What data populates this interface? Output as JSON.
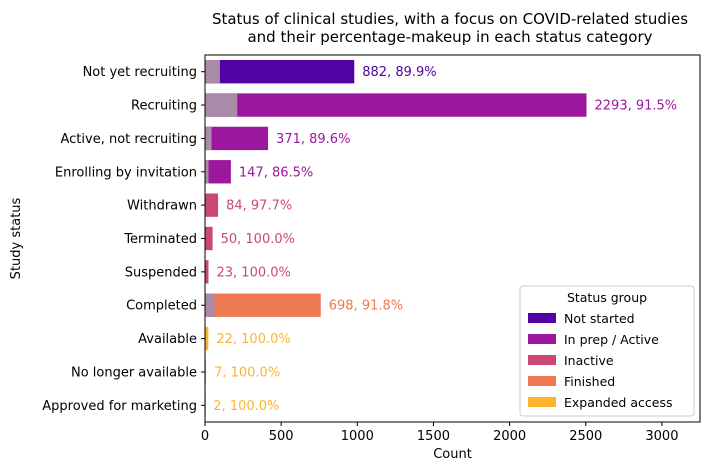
{
  "chart_data": {
    "type": "bar",
    "orientation": "horizontal",
    "title": "Status of clinical studies, with a focus on COVID-related studies\nand their percentage-makeup in each status category",
    "xlabel": "Count",
    "ylabel": "Study status",
    "xlim": [
      0,
      3250
    ],
    "xticks": [
      "0",
      "500",
      "1000",
      "1500",
      "2000",
      "2500",
      "3000"
    ],
    "categories": [
      "Not yet recruiting",
      "Recruiting",
      "Active, not recruiting",
      "Enrolling by invitation",
      "Withdrawn",
      "Terminated",
      "Suspended",
      "Completed",
      "Available",
      "No longer available",
      "Approved for marketing"
    ],
    "totals": [
      980,
      2505,
      414,
      170,
      86,
      50,
      23,
      760,
      22,
      7,
      2
    ],
    "covid_values": [
      98,
      212,
      43,
      23,
      2,
      0,
      0,
      62,
      0,
      0,
      0
    ],
    "groups": [
      "Not started",
      "In prep / Active",
      "In prep / Active",
      "In prep / Active",
      "Inactive",
      "Inactive",
      "Inactive",
      "Finished",
      "Expanded access",
      "Expanded access",
      "Expanded access"
    ],
    "bar_labels": [
      "882, 89.9%",
      "2293, 91.5%",
      "371, 89.6%",
      "147, 86.5%",
      "84, 97.7%",
      "50, 100.0%",
      "23, 100.0%",
      "698, 91.8%",
      "22, 100.0%",
      "7, 100.0%",
      "2, 100.0%"
    ],
    "legend": {
      "title": "Status group",
      "placement": "lower-right",
      "entries": [
        {
          "label": "Not started",
          "color": "#5302a3"
        },
        {
          "label": "In prep / Active",
          "color": "#9c179e"
        },
        {
          "label": "Inactive",
          "color": "#cc4778"
        },
        {
          "label": "Finished",
          "color": "#ed7953"
        },
        {
          "label": "Expanded access",
          "color": "#fdb42f"
        }
      ]
    },
    "grid": false
  }
}
